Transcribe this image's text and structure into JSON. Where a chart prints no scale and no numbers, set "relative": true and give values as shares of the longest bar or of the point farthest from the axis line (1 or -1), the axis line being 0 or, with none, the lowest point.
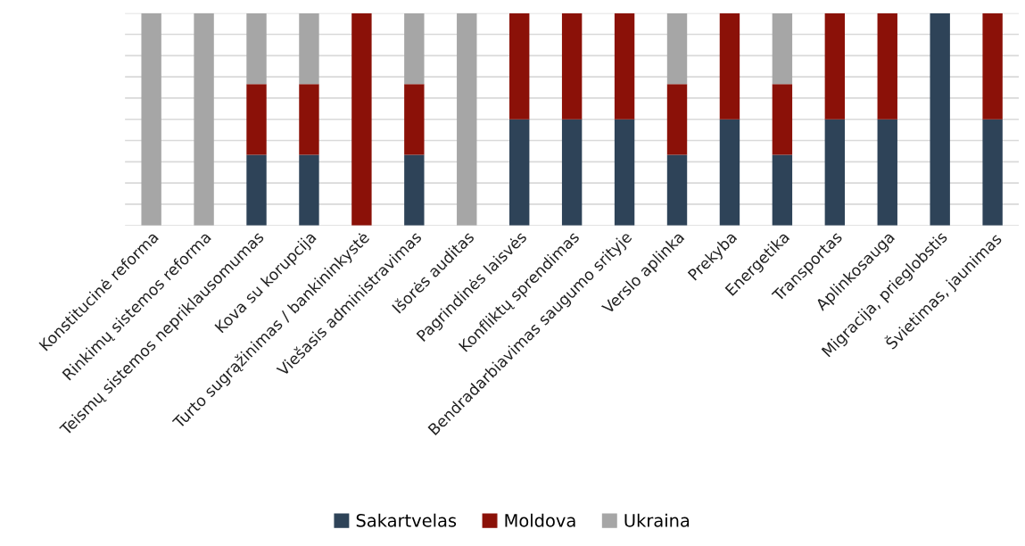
{
  "chart_data": {
    "type": "bar",
    "stacked": true,
    "relative": true,
    "grid": "y",
    "legend": "bottom",
    "categories": [
      "Konstitucinė reforma",
      "Rinkimų sistemos reforma",
      "Teismų sistemos nepriklausomumas",
      "Kova su korupcija",
      "Turto sugrąžinimas / bankininkystė",
      "Viešasis administravimas",
      "Išorės auditas",
      "Pagrindinės laisvės",
      "Konfliktų sprendimas",
      "Bendradarbiavimas saugumo srityje",
      "Verslo aplinka",
      "Prekyba",
      "Energetika",
      "Transportas",
      "Aplinkosauga",
      "Migracija, prieglobstis",
      "Švietimas, jaunimas"
    ],
    "series": [
      {
        "name": "Sakartvelas",
        "color": "#2e4358",
        "values": [
          0,
          0,
          0.333,
          0.333,
          0,
          0.333,
          0,
          0.5,
          0.5,
          0.5,
          0.333,
          0.5,
          0.333,
          0.5,
          0.5,
          1,
          0.5
        ]
      },
      {
        "name": "Moldova",
        "color": "#8b1108",
        "values": [
          0,
          0,
          0.333,
          0.333,
          1,
          0.333,
          0,
          0.5,
          0.5,
          0.5,
          0.333,
          0.5,
          0.333,
          0.5,
          0.5,
          0,
          0.5
        ]
      },
      {
        "name": "Ukraina",
        "color": "#a6a6a6",
        "values": [
          1,
          1,
          0.333,
          0.333,
          0,
          0.333,
          1,
          0,
          0,
          0,
          0.333,
          0,
          0.333,
          0,
          0,
          0,
          0
        ]
      }
    ]
  }
}
